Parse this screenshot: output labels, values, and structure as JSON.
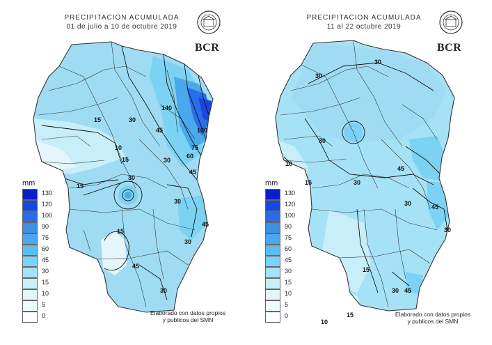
{
  "panels": [
    {
      "title": "PRECIPITACION ACUMULADA",
      "subtitle": "01 de julio a 10 de octubre 2019",
      "brand": "BCR",
      "legend_title": "mm",
      "credit_line1": "Elaborado con datos propios",
      "credit_line2": "y publicos del SMN",
      "contour_labels": [
        "30",
        "140",
        "45",
        "15",
        "10",
        "30",
        "15",
        "30",
        "30",
        "45",
        "30",
        "15",
        "15",
        "45",
        "30",
        "100",
        "75",
        "60",
        "45"
      ]
    },
    {
      "title": "PRECIPITACION ACUMULADA",
      "subtitle": "11 al 22 octubre 2019",
      "brand": "BCR",
      "legend_title": "mm",
      "credit_line1": "Elaborado con datos propios",
      "credit_line2": "y publicos del SMN",
      "contour_labels": [
        "30",
        "30",
        "30",
        "10",
        "15",
        "30",
        "45",
        "30",
        "45",
        "30",
        "15",
        "30",
        "45",
        "15",
        "10"
      ]
    }
  ],
  "legend": {
    "levels": [
      "130",
      "120",
      "100",
      "90",
      "75",
      "60",
      "45",
      "30",
      "15",
      "10",
      "5",
      "0"
    ],
    "colors": [
      "#0a1fc9",
      "#1a46e0",
      "#2a6de6",
      "#3d8fea",
      "#4aa9ec",
      "#5bbfee",
      "#7cd2f2",
      "#a6e2f6",
      "#c9eef9",
      "#e2f6fb",
      "#f0fafd",
      "#ffffff"
    ]
  },
  "colors": {
    "map_fill": "#9fdcf4",
    "map_light": "#c8eef9",
    "border": "#333333"
  }
}
